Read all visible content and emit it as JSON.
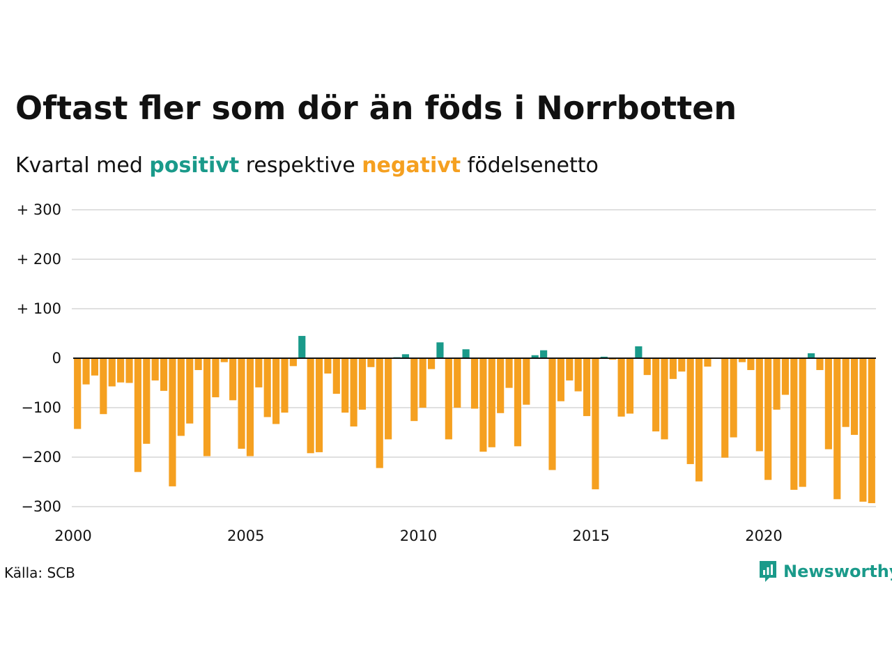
{
  "title": "Oftast fler som dör än föds i Norrbotten",
  "subtitle": {
    "prefix": "Kvartal med ",
    "positive": "positivt",
    "middle": " respektive ",
    "negative": "negativt",
    "suffix": " födelsenetto"
  },
  "source": "Källa: SCB",
  "brand": {
    "name": "Newsworthy",
    "icon": "newsworthy-logo-icon"
  },
  "colors": {
    "positive": "#1a9a8a",
    "negative": "#f5a020",
    "text": "#111111",
    "grid": "#e0e0e0",
    "brand": "#1a9a8a"
  },
  "chart_data": {
    "type": "bar",
    "title": "Oftast fler som dör än föds i Norrbotten",
    "subtitle": "Kvartal med positivt respektive negativt födelsenetto",
    "xlabel": "",
    "ylabel": "",
    "x_ticks": [
      {
        "value": 2000,
        "label": "2000"
      },
      {
        "value": 2005,
        "label": "2005"
      },
      {
        "value": 2010,
        "label": "2010"
      },
      {
        "value": 2015,
        "label": "2015"
      },
      {
        "value": 2020,
        "label": "2020"
      }
    ],
    "y_ticks": [
      {
        "value": 300,
        "label": "+ 300"
      },
      {
        "value": 200,
        "label": "+ 200"
      },
      {
        "value": 100,
        "label": "+ 100"
      },
      {
        "value": 0,
        "label": "0"
      },
      {
        "value": -100,
        "label": "−100"
      },
      {
        "value": -200,
        "label": "−200"
      },
      {
        "value": -300,
        "label": "−300"
      }
    ],
    "ylim": [
      -300,
      300
    ],
    "xlim": [
      2000,
      2023.25
    ],
    "grid": true,
    "start_quarter": "2000 Q1",
    "quarters": [
      "2000 Q1",
      "2000 Q2",
      "2000 Q3",
      "2000 Q4",
      "2001 Q1",
      "2001 Q2",
      "2001 Q3",
      "2001 Q4",
      "2002 Q1",
      "2002 Q2",
      "2002 Q3",
      "2002 Q4",
      "2003 Q1",
      "2003 Q2",
      "2003 Q3",
      "2003 Q4",
      "2004 Q1",
      "2004 Q2",
      "2004 Q3",
      "2004 Q4",
      "2005 Q1",
      "2005 Q2",
      "2005 Q3",
      "2005 Q4",
      "2006 Q1",
      "2006 Q2",
      "2006 Q3",
      "2006 Q4",
      "2007 Q1",
      "2007 Q2",
      "2007 Q3",
      "2007 Q4",
      "2008 Q1",
      "2008 Q2",
      "2008 Q3",
      "2008 Q4",
      "2009 Q1",
      "2009 Q2",
      "2009 Q3",
      "2009 Q4",
      "2010 Q1",
      "2010 Q2",
      "2010 Q3",
      "2010 Q4",
      "2011 Q1",
      "2011 Q2",
      "2011 Q3",
      "2011 Q4",
      "2012 Q1",
      "2012 Q2",
      "2012 Q3",
      "2012 Q4",
      "2013 Q1",
      "2013 Q2",
      "2013 Q3",
      "2013 Q4",
      "2014 Q1",
      "2014 Q2",
      "2014 Q3",
      "2014 Q4",
      "2015 Q1",
      "2015 Q2",
      "2015 Q3",
      "2015 Q4",
      "2016 Q1",
      "2016 Q2",
      "2016 Q3",
      "2016 Q4",
      "2017 Q1",
      "2017 Q2",
      "2017 Q3",
      "2017 Q4",
      "2018 Q1",
      "2018 Q2",
      "2018 Q3",
      "2018 Q4",
      "2019 Q1",
      "2019 Q2",
      "2019 Q3",
      "2019 Q4",
      "2020 Q1",
      "2020 Q2",
      "2020 Q3",
      "2020 Q4",
      "2021 Q1",
      "2021 Q2",
      "2021 Q3",
      "2021 Q4",
      "2022 Q1",
      "2022 Q2",
      "2022 Q3",
      "2022 Q4",
      "2023 Q1"
    ],
    "values": [
      -143,
      -53,
      -35,
      -113,
      -57,
      -49,
      -50,
      -230,
      -173,
      -45,
      -66,
      -259,
      -157,
      -132,
      -24,
      -198,
      -79,
      -8,
      -85,
      -183,
      -198,
      -59,
      -119,
      -133,
      -110,
      -16,
      45,
      -192,
      -190,
      -31,
      -72,
      -110,
      -138,
      -104,
      -18,
      -222,
      -164,
      2,
      8,
      -127,
      -100,
      -22,
      32,
      -164,
      -100,
      18,
      -102,
      -189,
      -180,
      -111,
      -60,
      -178,
      -94,
      6,
      16,
      -226,
      -87,
      -45,
      -67,
      -117,
      -265,
      3,
      -3,
      -118,
      -112,
      24,
      -34,
      -148,
      -164,
      -42,
      -27,
      -214,
      -249,
      -17,
      0,
      -201,
      -160,
      -8,
      -24,
      -188,
      -246,
      -104,
      -74,
      -266,
      -260,
      10,
      -24,
      -184,
      -285,
      -139,
      -155,
      -290,
      -293
    ]
  }
}
